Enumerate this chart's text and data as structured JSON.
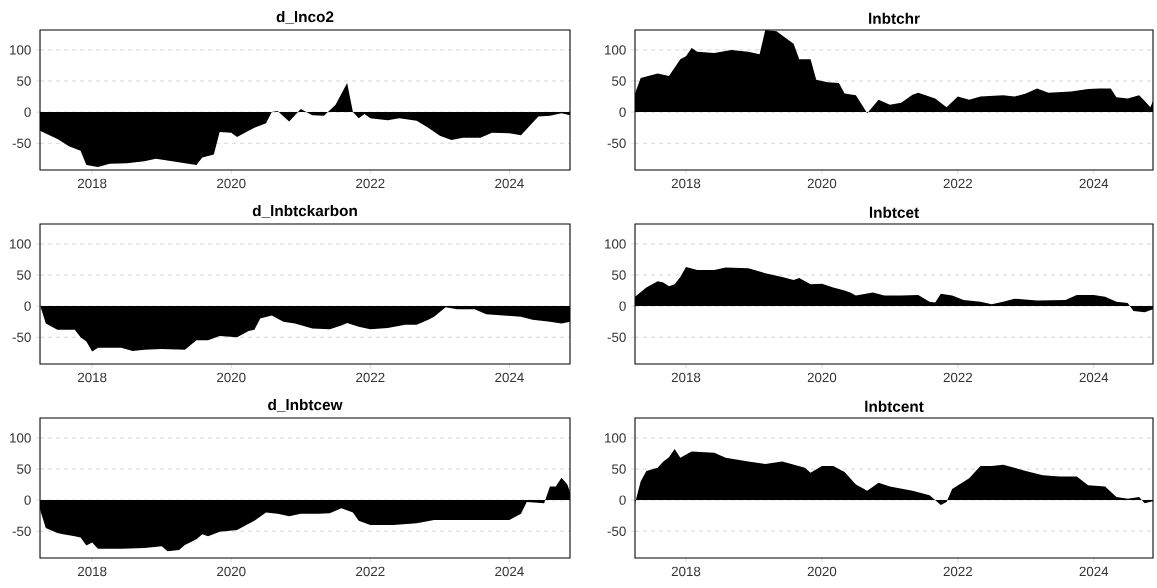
{
  "chart_data": [
    {
      "type": "area",
      "title": "d_lnco2",
      "color": "#000000",
      "xlim": [
        "2017-04",
        "2024-11-15"
      ],
      "ylim": [
        -93,
        132
      ],
      "xticks": [
        "2018",
        "2020",
        "2022",
        "2024"
      ],
      "yticks": [
        -50,
        0,
        50,
        100
      ],
      "grid": "y",
      "x": [
        "2017-04",
        "2017-07",
        "2017-09",
        "2017-11",
        "2017-12",
        "2018-02",
        "2018-04",
        "2018-07",
        "2018-10",
        "2018-12",
        "2019-02",
        "2019-05",
        "2019-07",
        "2019-08",
        "2019-10",
        "2019-11",
        "2020-01",
        "2020-02",
        "2020-04",
        "2020-05",
        "2020-07",
        "2020-08",
        "2020-09",
        "2020-11",
        "2021-01",
        "2021-03",
        "2021-05",
        "2021-07",
        "2021-09",
        "2021-10",
        "2021-11",
        "2021-12",
        "2022-01",
        "2022-04",
        "2022-06",
        "2022-09",
        "2022-11",
        "2023-01",
        "2023-03",
        "2023-05",
        "2023-08",
        "2023-10",
        "2024-01",
        "2024-03",
        "2024-06",
        "2024-08",
        "2024-10",
        "2024-11-15"
      ],
      "values": [
        -30,
        -43,
        -55,
        -62,
        -85,
        -88,
        -83,
        -82,
        -79,
        -75,
        null,
        null,
        -85,
        -73,
        -68,
        -32,
        -33,
        -40,
        -30,
        -25,
        -18,
        0,
        2,
        -15,
        5,
        -5,
        -6,
        12,
        47,
        0,
        -10,
        -3,
        -10,
        -13,
        -10,
        -14,
        -25,
        -38,
        -45,
        -41,
        -41,
        -33,
        -34,
        -37,
        -7,
        -6,
        -2,
        -5
      ]
    },
    {
      "type": "area",
      "title": "lnbtchr",
      "color": "#000000",
      "xlim": [
        "2017-04",
        "2024-11-15"
      ],
      "ylim": [
        -93,
        132
      ],
      "xticks": [
        "2018",
        "2020",
        "2022",
        "2024"
      ],
      "yticks": [
        -50,
        0,
        50,
        100
      ],
      "grid": "y",
      "x": [
        "2017-04",
        "2017-05",
        "2017-08",
        "2017-10",
        "2017-12",
        "2018-01",
        "2018-02",
        "2018-03",
        "2018-06",
        "2018-09",
        "2018-12",
        "2019-02",
        "2019-03",
        "2019-05",
        "2019-06",
        "2019-08",
        "2019-09",
        "2019-11",
        "2019-12",
        "2020-02",
        "2020-04",
        "2020-05",
        "2020-07",
        "2020-09",
        "2020-11",
        "2021-01",
        "2021-03",
        "2021-05",
        "2021-06",
        "2021-09",
        "2021-11",
        "2022-01",
        "2022-03",
        "2022-05",
        "2022-09",
        "2022-11",
        "2023-01",
        "2023-03",
        "2023-05",
        "2023-09",
        "2023-12",
        "2024-02",
        "2024-04",
        "2024-05",
        "2024-07",
        "2024-09",
        "2024-10",
        "2024-11",
        "2024-11-15"
      ],
      "values": [
        30,
        55,
        62,
        58,
        85,
        90,
        103,
        97,
        95,
        100,
        97,
        93,
        132,
        130,
        123,
        110,
        85,
        85,
        52,
        48,
        47,
        30,
        27,
        -2,
        20,
        12,
        15,
        28,
        31,
        22,
        8,
        25,
        20,
        25,
        27,
        25,
        30,
        38,
        31,
        33,
        37,
        38,
        38,
        24,
        22,
        27,
        18,
        8,
        18
      ]
    },
    {
      "type": "area",
      "title": "d_lnbtckarbon",
      "color": "#000000",
      "xlim": [
        "2017-04",
        "2024-11-15"
      ],
      "ylim": [
        -93,
        132
      ],
      "xticks": [
        "2018",
        "2020",
        "2022",
        "2024"
      ],
      "yticks": [
        -50,
        0,
        50,
        100
      ],
      "grid": "y",
      "x": [
        "2017-04",
        "2017-05",
        "2017-07",
        "2017-10",
        "2017-11",
        "2017-12",
        "2018-01",
        "2018-02",
        "2018-06",
        "2018-08",
        "2018-10",
        "2019-01",
        "2019-05",
        "2019-07",
        "2019-09",
        "2019-11",
        "2020-02",
        "2020-04",
        "2020-05",
        "2020-06",
        "2020-08",
        "2020-10",
        "2020-12",
        "2021-03",
        "2021-06",
        "2021-08",
        "2021-09",
        "2021-11",
        "2022-01",
        "2022-04",
        "2022-07",
        "2022-09",
        "2022-11",
        "2022-12",
        "2023-02",
        "2023-04",
        "2023-07",
        "2023-09",
        "2023-12",
        "2024-03",
        "2024-05",
        "2024-08",
        "2024-10",
        "2024-11-15"
      ],
      "values": [
        2,
        -28,
        -38,
        -38,
        -50,
        -57,
        -73,
        -67,
        -67,
        -72,
        -70,
        -69,
        -70,
        -55,
        -55,
        -48,
        -50,
        -40,
        -38,
        -20,
        -15,
        -25,
        -28,
        -36,
        -37,
        -31,
        -27,
        -33,
        -37,
        -35,
        -30,
        -30,
        -22,
        -17,
        -2,
        -5,
        -5,
        -13,
        -15,
        -17,
        -22,
        -25,
        -28,
        -25
      ]
    },
    {
      "type": "area",
      "title": "lnbtcet",
      "color": "#000000",
      "xlim": [
        "2017-04",
        "2024-11-15"
      ],
      "ylim": [
        -93,
        132
      ],
      "xticks": [
        "2018",
        "2020",
        "2022",
        "2024"
      ],
      "yticks": [
        -50,
        0,
        50,
        100
      ],
      "grid": "y",
      "x": [
        "2017-04",
        "2017-06",
        "2017-08",
        "2017-09",
        "2017-10",
        "2017-11",
        "2017-12",
        "2018-01",
        "2018-03",
        "2018-06",
        "2018-08",
        "2018-12",
        "2019-03",
        "2019-06",
        "2019-08",
        "2019-09",
        "2019-11",
        "2020-01",
        "2020-03",
        "2020-05",
        "2020-06",
        "2020-07",
        "2020-10",
        "2020-12",
        "2021-03",
        "2021-06",
        "2021-08",
        "2021-09",
        "2021-10",
        "2021-12",
        "2022-02",
        "2022-05",
        "2022-07",
        "2022-09",
        "2022-11",
        "2023-03",
        "2023-08",
        "2023-10",
        "2024-01",
        "2024-03",
        "2024-05",
        "2024-07",
        "2024-08",
        "2024-10",
        "2024-11-15"
      ],
      "values": [
        15,
        30,
        40,
        38,
        32,
        35,
        47,
        63,
        58,
        58,
        62,
        61,
        53,
        47,
        42,
        45,
        35,
        36,
        30,
        25,
        22,
        17,
        22,
        17,
        17,
        18,
        7,
        6,
        20,
        17,
        10,
        7,
        3,
        7,
        12,
        9,
        10,
        18,
        18,
        15,
        7,
        5,
        -8,
        -10,
        -5
      ]
    },
    {
      "type": "area",
      "title": "d_lnbtcew",
      "color": "#000000",
      "xlim": [
        "2017-04",
        "2024-11-15"
      ],
      "ylim": [
        -93,
        132
      ],
      "xticks": [
        "2018",
        "2020",
        "2022",
        "2024"
      ],
      "yticks": [
        -50,
        0,
        50,
        100
      ],
      "grid": "y",
      "x": [
        "2017-04",
        "2017-05",
        "2017-07",
        "2017-08",
        "2017-10",
        "2017-11",
        "2017-12",
        "2018-01",
        "2018-02",
        "2018-06",
        "2018-10",
        "2019-01",
        "2019-02",
        "2019-04",
        "2019-05",
        "2019-07",
        "2019-08",
        "2019-09",
        "2019-11",
        "2020-02",
        "2020-04",
        "2020-05",
        "2020-07",
        "2020-09",
        "2020-11",
        "2021-01",
        "2021-04",
        "2021-06",
        "2021-08",
        "2021-10",
        "2021-11",
        "2022-01",
        "2022-05",
        "2022-09",
        "2022-12",
        "2023-06",
        "2024-01",
        "2024-03",
        "2024-04",
        "2024-07",
        "2024-08",
        "2024-09",
        "2024-10",
        "2024-11",
        "2024-11-15"
      ],
      "values": [
        -15,
        -45,
        -53,
        -55,
        -58,
        -60,
        -73,
        -68,
        -78,
        -78,
        -77,
        -74,
        -82,
        -80,
        -72,
        -63,
        -55,
        -58,
        -51,
        -48,
        -38,
        -33,
        -20,
        -22,
        -26,
        -22,
        -22,
        -21,
        -13,
        -20,
        -33,
        -40,
        -40,
        -37,
        -32,
        -32,
        -32,
        -22,
        -3,
        -5,
        22,
        22,
        36,
        25,
        13
      ]
    },
    {
      "type": "area",
      "title": "lnbtcent",
      "color": "#000000",
      "xlim": [
        "2017-04",
        "2024-11-15"
      ],
      "ylim": [
        -93,
        132
      ],
      "xticks": [
        "2018",
        "2020",
        "2022",
        "2024"
      ],
      "yticks": [
        -50,
        0,
        50,
        100
      ],
      "grid": "y",
      "x": [
        "2017-04",
        "2017-05",
        "2017-06",
        "2017-08",
        "2017-09",
        "2017-10",
        "2017-11",
        "2017-12",
        "2018-02",
        "2018-06",
        "2018-08",
        "2018-12",
        "2019-03",
        "2019-06",
        "2019-08",
        "2019-10",
        "2019-11",
        "2020-01",
        "2020-03",
        "2020-05",
        "2020-07",
        "2020-09",
        "2020-11",
        "2021-01",
        "2021-05",
        "2021-08",
        "2021-10",
        "2021-11",
        "2021-12",
        "2022-03",
        "2022-05",
        "2022-07",
        "2022-09",
        "2022-11",
        "2023-01",
        "2023-04",
        "2023-07",
        "2023-10",
        "2023-12",
        "2024-03",
        "2024-05",
        "2024-07",
        "2024-09",
        "2024-10",
        "2024-11-15"
      ],
      "values": [
        -5,
        30,
        47,
        52,
        62,
        69,
        82,
        68,
        78,
        76,
        68,
        62,
        58,
        62,
        57,
        52,
        44,
        55,
        55,
        45,
        25,
        15,
        28,
        22,
        15,
        8,
        -8,
        -3,
        18,
        35,
        55,
        55,
        57,
        52,
        47,
        40,
        38,
        38,
        24,
        22,
        5,
        2,
        5,
        -5,
        -2
      ]
    }
  ]
}
